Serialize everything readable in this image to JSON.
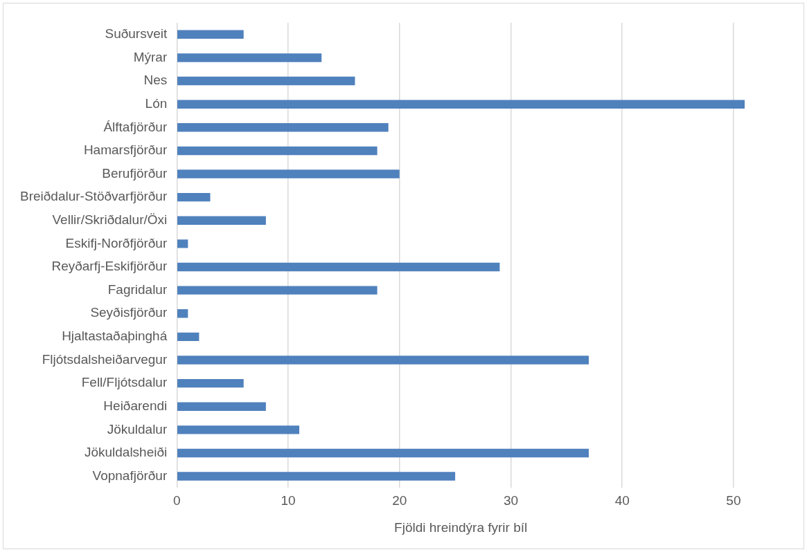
{
  "chart_data": {
    "type": "bar",
    "orientation": "horizontal",
    "xlabel": "Fjöldi hreindýra fyrir bíl",
    "categories": [
      "Suðursveit",
      "Mýrar",
      "Nes",
      "Lón",
      "Álftafjörður",
      "Hamarsfjörður",
      "Berufjörður",
      "Breiðdalur-Stöðvarfjörður",
      "Vellir/Skriðdalur/Öxi",
      "Eskifj-Norðfjörður",
      "Reyðarfj-Eskifjörður",
      "Fagridalur",
      "Seyðisfjörður",
      "Hjaltastaðaþinghá",
      "Fljótsdalsheiðarvegur",
      "Fell/Fljótsdalur",
      "Heiðarendi",
      "Jökuldalur",
      "Jökuldalsheiði",
      "Vopnafjörður"
    ],
    "values": [
      6,
      13,
      16,
      51,
      19,
      18,
      20,
      3,
      8,
      1,
      29,
      18,
      1,
      2,
      37,
      6,
      8,
      11,
      37,
      25
    ],
    "color": "#4f81bd",
    "xlim": [
      0,
      51
    ],
    "xticks": [
      0,
      10,
      20,
      30,
      40,
      50
    ],
    "grid": "x",
    "legend": false
  }
}
